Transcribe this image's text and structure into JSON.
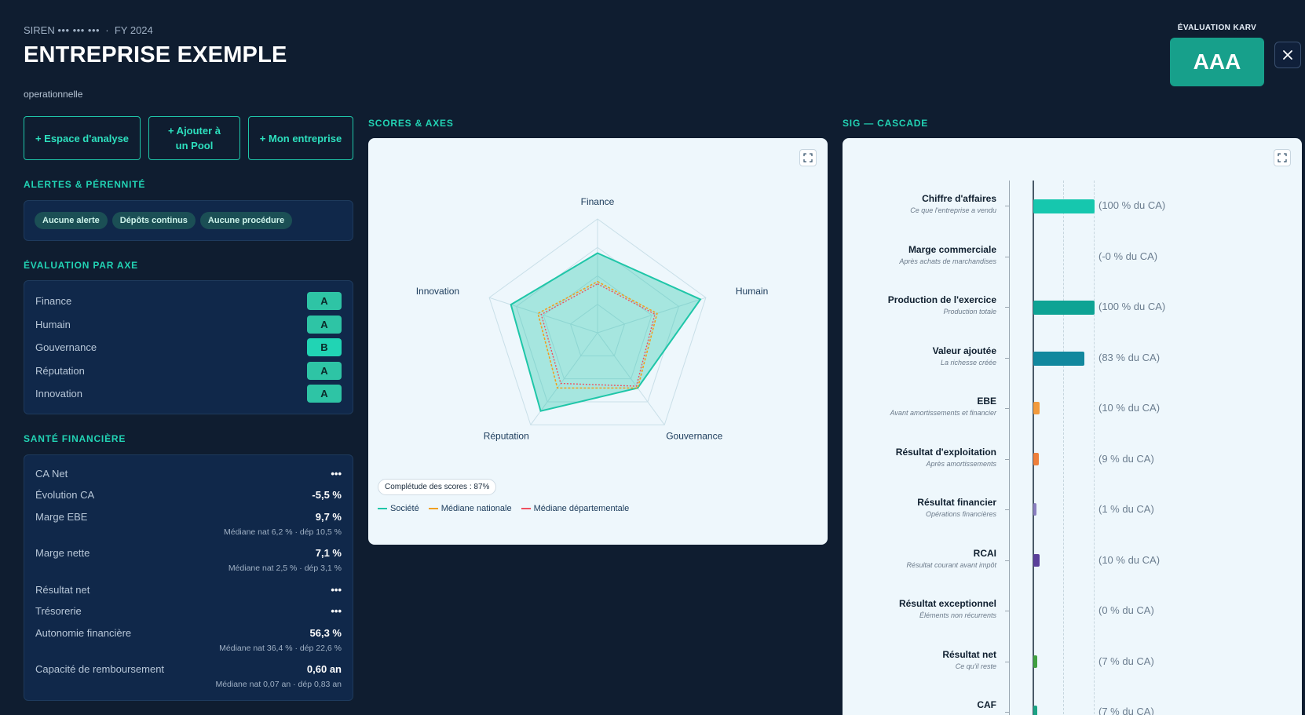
{
  "header": {
    "siren_label": "SIREN",
    "siren_value": "••• ••• •••",
    "separator": "·",
    "fiscal_year": "FY 2024",
    "title": "ENTREPRISE EXEMPLE",
    "subtitle": "operationnelle",
    "evaluation_label": "ÉVALUATION KARV",
    "evaluation_grade": "AAA",
    "close_icon": "close-icon"
  },
  "actions": [
    {
      "label": "+ Espace d'analyse"
    },
    {
      "label": "+ Ajouter à un Pool"
    },
    {
      "label": "+ Mon entreprise"
    }
  ],
  "alerts": {
    "title": "ALERTES & PÉRENNITÉ",
    "pills": [
      "Aucune alerte",
      "Dépôts continus",
      "Aucune procédure"
    ]
  },
  "axes_eval": {
    "title": "ÉVALUATION PAR AXE",
    "rows": [
      {
        "label": "Finance",
        "grade": "A",
        "color": "#2ec4a5"
      },
      {
        "label": "Humain",
        "grade": "A",
        "color": "#2ec4a5"
      },
      {
        "label": "Gouvernance",
        "grade": "B",
        "color": "#21d4b4"
      },
      {
        "label": "Réputation",
        "grade": "A",
        "color": "#2ec4a5"
      },
      {
        "label": "Innovation",
        "grade": "A",
        "color": "#2ec4a5"
      }
    ]
  },
  "financial_health": {
    "title": "SANTÉ FINANCIÈRE",
    "rows": [
      {
        "label": "CA Net",
        "value": "•••",
        "sub": ""
      },
      {
        "label": "Évolution CA",
        "value": "-5,5 %",
        "sub": ""
      },
      {
        "label": "Marge EBE",
        "value": "9,7 %",
        "sub": "Médiane nat 6,2 % · dép 10,5 %"
      },
      {
        "label": "Marge nette",
        "value": "7,1 %",
        "sub": "Médiane nat 2,5 % · dép 3,1 %"
      },
      {
        "label": "Résultat net",
        "value": "•••",
        "sub": ""
      },
      {
        "label": "Trésorerie",
        "value": "•••",
        "sub": ""
      },
      {
        "label": "Autonomie financière",
        "value": "56,3 %",
        "sub": "Médiane nat 36,4 % · dép 22,6 %"
      },
      {
        "label": "Capacité de remboursement",
        "value": "0,60 an",
        "sub": "Médiane nat 0,07 an · dép 0,83 an"
      }
    ]
  },
  "scores": {
    "title": "SCORES & AXES",
    "completude": "Complétude des scores : 87%",
    "legend": [
      {
        "name": "Société",
        "color": "#1fc6a8"
      },
      {
        "name": "Médiane nationale",
        "color": "#f0a020"
      },
      {
        "name": "Médiane départementale",
        "color": "#ef5060"
      }
    ],
    "expand_icon": "expand-icon"
  },
  "sig": {
    "title": "SIG — CASCADE",
    "expand_icon": "expand-icon",
    "rows": [
      {
        "name": "Chiffre d'affaires",
        "desc": "Ce que l'entreprise a vendu",
        "pct": "(100 % du CA)",
        "value": 100,
        "color": "#16c7ae"
      },
      {
        "name": "Marge commerciale",
        "desc": "Après achats de marchandises",
        "pct": "(-0 % du CA)",
        "value": 0,
        "color": "#16c7ae"
      },
      {
        "name": "Production de l'exercice",
        "desc": "Production totale",
        "pct": "(100 % du CA)",
        "value": 100,
        "color": "#0ea394"
      },
      {
        "name": "Valeur ajoutée",
        "desc": "La richesse créée",
        "pct": "(83 % du CA)",
        "value": 83,
        "color": "#12889e"
      },
      {
        "name": "EBE",
        "desc": "Avant amortissements et financier",
        "pct": "(10 % du CA)",
        "value": 10,
        "color": "#f29a3c"
      },
      {
        "name": "Résultat d'exploitation",
        "desc": "Après amortissements",
        "pct": "(9 % du CA)",
        "value": 9,
        "color": "#ef7f3a"
      },
      {
        "name": "Résultat financier",
        "desc": "Opérations financières",
        "pct": "(1 % du CA)",
        "value": 1,
        "color": "#8a7fc0"
      },
      {
        "name": "RCAI",
        "desc": "Résultat courant avant impôt",
        "pct": "(10 % du CA)",
        "value": 10,
        "color": "#5a3f9a"
      },
      {
        "name": "Résultat exceptionnel",
        "desc": "Éléments non récurrents",
        "pct": "(0 % du CA)",
        "value": 0,
        "color": "#8a7fc0"
      },
      {
        "name": "Résultat net",
        "desc": "Ce qu'il reste",
        "pct": "(7 % du CA)",
        "value": 7,
        "color": "#3fa040"
      },
      {
        "name": "CAF",
        "desc": "",
        "pct": "(7 % du CA)",
        "value": 7,
        "color": "#1aa384"
      }
    ]
  },
  "chart_data": {
    "type": "radar",
    "categories": [
      "Finance",
      "Humain",
      "Gouvernance",
      "Réputation",
      "Innovation"
    ],
    "series": [
      {
        "name": "Société",
        "values": [
          0.7,
          0.95,
          0.6,
          0.85,
          0.8
        ]
      },
      {
        "name": "Médiane nationale",
        "values": [
          0.45,
          0.55,
          0.6,
          0.6,
          0.55
        ]
      },
      {
        "name": "Médiane départementale",
        "values": [
          0.43,
          0.53,
          0.58,
          0.55,
          0.52
        ]
      }
    ],
    "grid_levels": 4
  }
}
